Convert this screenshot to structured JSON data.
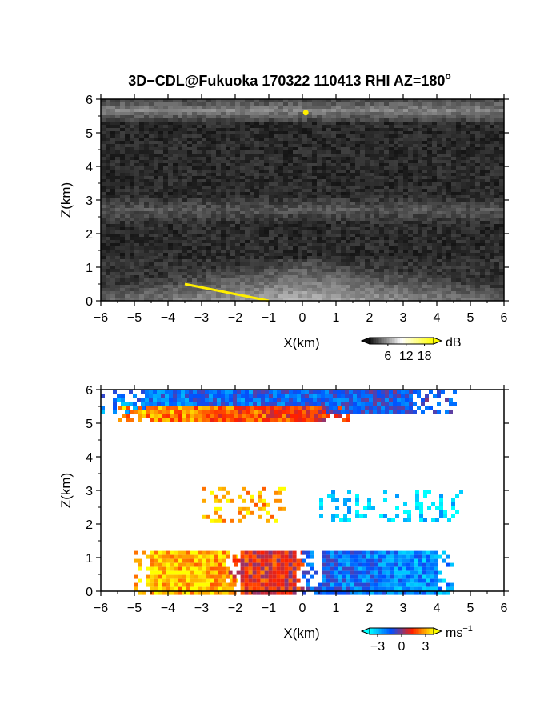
{
  "title": "3D−CDL@Fukuoka 170322 110413 RHI AZ=180",
  "title_sup": "o",
  "chart_data": [
    {
      "type": "heatmap",
      "name": "intensity",
      "xlabel": "X(km)",
      "ylabel": "Z(km)",
      "xlim": [
        -6,
        6
      ],
      "ylim": [
        0,
        6
      ],
      "xticks": [
        -6,
        -5,
        -4,
        -3,
        -2,
        -1,
        0,
        1,
        2,
        3,
        4,
        5,
        6
      ],
      "yticks": [
        0,
        1,
        2,
        3,
        4,
        5,
        6
      ],
      "colorbar": {
        "unit": "dB",
        "ticks": [
          6,
          12,
          18
        ],
        "range": [
          0,
          21
        ],
        "colors": [
          "#101010",
          "#ffffff",
          "#ffff00"
        ]
      },
      "layers": [
        {
          "z_bottom": 5.35,
          "z_top": 6.0,
          "level": 10
        },
        {
          "z_bottom": 2.3,
          "z_top": 3.1,
          "level": 6
        },
        {
          "z_bottom": 0.0,
          "z_top": 1.2,
          "level": 14
        }
      ],
      "yellow_edge": [
        [
          -3.5,
          0.5
        ],
        [
          -2.5,
          0.3
        ],
        [
          -1.0,
          0.0
        ]
      ],
      "yellow_spot": [
        0.1,
        5.6
      ]
    },
    {
      "type": "heatmap",
      "name": "doppler_velocity",
      "xlabel": "X(km)",
      "ylabel": "Z(km)",
      "xlim": [
        -6,
        6
      ],
      "ylim": [
        0,
        6
      ],
      "xticks": [
        -6,
        -5,
        -4,
        -3,
        -2,
        -1,
        0,
        1,
        2,
        3,
        4,
        5,
        6
      ],
      "yticks": [
        0,
        1,
        2,
        3,
        4,
        5,
        6
      ],
      "colorbar": {
        "unit": "ms",
        "unit_sup": "−1",
        "ticks": [
          -3,
          0,
          3
        ],
        "range": [
          -4,
          4
        ],
        "colors": [
          "#00ffff",
          "#0050ff",
          "#ff2000",
          "#ffff00"
        ]
      },
      "regions": [
        {
          "x": [
            -6,
            4.5
          ],
          "z": [
            5.4,
            6.0
          ],
          "v_west": -2.0,
          "v_east": -1.0
        },
        {
          "x": [
            -5.5,
            1.5
          ],
          "z": [
            5.1,
            5.5
          ],
          "v_west": 3.0,
          "v_east": 1.0
        },
        {
          "x": [
            -3.0,
            -0.5
          ],
          "z": [
            2.1,
            3.1
          ],
          "v_west": 3.5,
          "v_east": 3.0
        },
        {
          "x": [
            0.5,
            4.7
          ],
          "z": [
            2.1,
            3.0
          ],
          "v_west": -3.5,
          "v_east": -3.5
        },
        {
          "x": [
            -5.0,
            -2.0
          ],
          "z": [
            0.0,
            1.2
          ],
          "v_west": 3.5,
          "v_east": 3.0
        },
        {
          "x": [
            -2.2,
            0.0
          ],
          "z": [
            0.0,
            1.2
          ],
          "v_west": 1.5,
          "v_east": 1.0
        },
        {
          "x": [
            0.0,
            4.5
          ],
          "z": [
            0.0,
            1.2
          ],
          "v_west": -1.5,
          "v_east": -2.5
        }
      ]
    }
  ]
}
